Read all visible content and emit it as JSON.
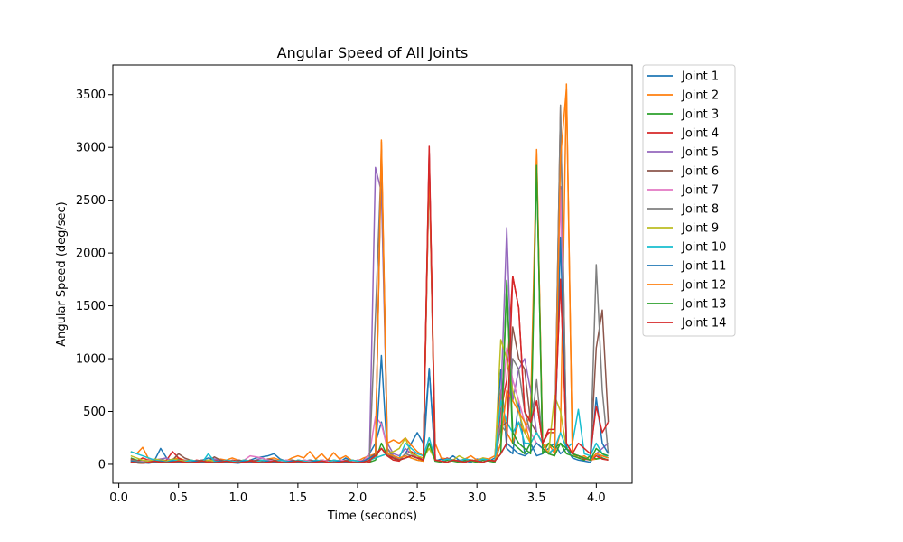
{
  "chart_data": {
    "type": "line",
    "title": "Angular Speed of All Joints",
    "xlabel": "Time (seconds)",
    "ylabel": "Angular Speed (deg/sec)",
    "xlim": [
      -0.05,
      4.3
    ],
    "ylim": [
      -180,
      3780
    ],
    "xticks": [
      0.0,
      0.5,
      1.0,
      1.5,
      2.0,
      2.5,
      3.0,
      3.5,
      4.0
    ],
    "xtick_labels": [
      "0.0",
      "0.5",
      "1.0",
      "1.5",
      "2.0",
      "2.5",
      "3.0",
      "3.5",
      "4.0"
    ],
    "yticks": [
      0,
      500,
      1000,
      1500,
      2000,
      2500,
      3000,
      3500
    ],
    "ytick_labels": [
      "0",
      "500",
      "1000",
      "1500",
      "2000",
      "2500",
      "3000",
      "3500"
    ],
    "grid": false,
    "legend_position": "outside-top-right",
    "x": [
      0.1,
      0.15,
      0.2,
      0.25,
      0.3,
      0.35,
      0.4,
      0.45,
      0.5,
      0.55,
      0.6,
      0.65,
      0.7,
      0.75,
      0.8,
      0.85,
      0.9,
      0.95,
      1.0,
      1.05,
      1.1,
      1.15,
      1.2,
      1.25,
      1.3,
      1.35,
      1.4,
      1.45,
      1.5,
      1.55,
      1.6,
      1.65,
      1.7,
      1.75,
      1.8,
      1.85,
      1.9,
      1.95,
      2.0,
      2.05,
      2.1,
      2.15,
      2.2,
      2.25,
      2.3,
      2.35,
      2.4,
      2.45,
      2.5,
      2.55,
      2.6,
      2.65,
      2.7,
      2.75,
      2.8,
      2.85,
      2.9,
      2.95,
      3.0,
      3.05,
      3.1,
      3.15,
      3.2,
      3.25,
      3.3,
      3.35,
      3.4,
      3.45,
      3.5,
      3.55,
      3.6,
      3.65,
      3.7,
      3.75,
      3.8,
      3.85,
      3.9,
      3.95,
      4.0,
      4.05,
      4.1
    ],
    "series": [
      {
        "name": "Joint 1",
        "color": "#1f77b4",
        "values": [
          30,
          15,
          10,
          20,
          40,
          150,
          60,
          30,
          50,
          20,
          15,
          30,
          40,
          60,
          50,
          30,
          20,
          15,
          10,
          20,
          40,
          60,
          70,
          80,
          100,
          50,
          30,
          20,
          20,
          30,
          40,
          30,
          20,
          40,
          30,
          20,
          60,
          30,
          20,
          40,
          100,
          200,
          400,
          150,
          60,
          40,
          100,
          200,
          300,
          200,
          900,
          30,
          50,
          40,
          80,
          40,
          30,
          20,
          50,
          40,
          30,
          60,
          900,
          150,
          100,
          600,
          100,
          200,
          80,
          100,
          150,
          200,
          100,
          150,
          60,
          40,
          30,
          20,
          100,
          60,
          40
        ]
      },
      {
        "name": "Joint 2",
        "color": "#ff7f0e",
        "values": [
          120,
          100,
          160,
          50,
          30,
          40,
          20,
          50,
          60,
          40,
          30,
          20,
          40,
          30,
          20,
          50,
          40,
          60,
          40,
          30,
          20,
          40,
          30,
          50,
          60,
          40,
          30,
          60,
          80,
          60,
          120,
          50,
          100,
          40,
          110,
          50,
          80,
          40,
          30,
          60,
          80,
          100,
          3070,
          200,
          230,
          200,
          250,
          180,
          120,
          80,
          2900,
          200,
          60,
          50,
          40,
          30,
          50,
          80,
          40,
          60,
          50,
          80,
          700,
          300,
          200,
          400,
          300,
          500,
          2980,
          150,
          200,
          100,
          300,
          3600,
          100,
          60,
          80,
          40,
          50,
          80,
          60
        ]
      },
      {
        "name": "Joint 3",
        "color": "#2ca02c",
        "values": [
          60,
          40,
          30,
          20,
          40,
          50,
          30,
          20,
          15,
          30,
          40,
          20,
          30,
          40,
          20,
          30,
          15,
          20,
          30,
          40,
          20,
          30,
          40,
          20,
          30,
          20,
          30,
          40,
          20,
          30,
          20,
          30,
          40,
          30,
          20,
          40,
          30,
          20,
          40,
          30,
          20,
          40,
          200,
          80,
          40,
          60,
          80,
          60,
          40,
          30,
          200,
          30,
          20,
          40,
          30,
          20,
          40,
          30,
          20,
          40,
          30,
          20,
          200,
          1740,
          200,
          150,
          100,
          200,
          2880,
          100,
          200,
          150,
          200,
          100,
          80,
          60,
          40,
          80,
          50,
          60,
          40
        ]
      },
      {
        "name": "Joint 4",
        "color": "#d62728",
        "values": [
          50,
          30,
          60,
          40,
          20,
          30,
          40,
          120,
          60,
          30,
          20,
          40,
          30,
          20,
          40,
          30,
          20,
          40,
          30,
          20,
          40,
          30,
          20,
          40,
          30,
          20,
          40,
          30,
          20,
          40,
          30,
          20,
          40,
          30,
          20,
          40,
          30,
          20,
          40,
          30,
          20,
          100,
          150,
          80,
          40,
          30,
          100,
          120,
          80,
          40,
          2950,
          40,
          30,
          60,
          40,
          30,
          50,
          40,
          30,
          50,
          40,
          30,
          500,
          800,
          1780,
          1480,
          500,
          400,
          600,
          200,
          300,
          300,
          1750,
          200,
          100,
          80,
          50,
          40,
          80,
          50,
          40
        ]
      },
      {
        "name": "Joint 5",
        "color": "#9467bd",
        "values": [
          40,
          30,
          20,
          30,
          40,
          50,
          60,
          30,
          20,
          40,
          30,
          20,
          40,
          30,
          50,
          40,
          30,
          20,
          40,
          30,
          20,
          40,
          60,
          40,
          30,
          20,
          40,
          30,
          20,
          40,
          30,
          20,
          40,
          30,
          20,
          40,
          30,
          20,
          40,
          30,
          100,
          2810,
          2580,
          200,
          100,
          80,
          150,
          100,
          60,
          40,
          2950,
          40,
          30,
          50,
          40,
          30,
          50,
          40,
          30,
          50,
          40,
          30,
          600,
          2240,
          600,
          900,
          1000,
          700,
          300,
          200,
          100,
          150,
          2630,
          150,
          100,
          80,
          60,
          40,
          100,
          150,
          200
        ]
      },
      {
        "name": "Joint 6",
        "color": "#8c564b",
        "values": [
          40,
          30,
          20,
          30,
          40,
          30,
          20,
          40,
          100,
          60,
          40,
          30,
          40,
          30,
          70,
          40,
          30,
          20,
          40,
          30,
          20,
          40,
          30,
          50,
          40,
          30,
          20,
          40,
          30,
          20,
          40,
          30,
          20,
          40,
          30,
          20,
          40,
          30,
          20,
          40,
          60,
          100,
          2980,
          100,
          60,
          40,
          60,
          80,
          60,
          40,
          2800,
          40,
          30,
          50,
          40,
          30,
          50,
          40,
          30,
          50,
          40,
          30,
          350,
          400,
          1300,
          1000,
          900,
          400,
          300,
          200,
          100,
          150,
          3380,
          150,
          100,
          80,
          60,
          40,
          1100,
          1460,
          400
        ]
      },
      {
        "name": "Joint 7",
        "color": "#e377c2",
        "values": [
          30,
          20,
          30,
          40,
          50,
          30,
          20,
          40,
          30,
          20,
          40,
          30,
          20,
          40,
          30,
          20,
          40,
          30,
          20,
          40,
          80,
          70,
          60,
          40,
          30,
          20,
          40,
          30,
          20,
          40,
          30,
          20,
          40,
          30,
          20,
          40,
          30,
          20,
          40,
          30,
          100,
          450,
          380,
          150,
          80,
          40,
          100,
          80,
          60,
          40,
          250,
          40,
          30,
          50,
          40,
          30,
          50,
          40,
          30,
          50,
          40,
          30,
          400,
          1100,
          800,
          600,
          400,
          300,
          200,
          150,
          100,
          150,
          2600,
          150,
          100,
          80,
          60,
          40,
          100,
          80,
          60
        ]
      },
      {
        "name": "Joint 8",
        "color": "#7f7f7f",
        "values": [
          40,
          30,
          20,
          30,
          40,
          30,
          20,
          40,
          30,
          20,
          40,
          30,
          20,
          40,
          30,
          20,
          40,
          30,
          20,
          40,
          30,
          20,
          40,
          30,
          20,
          40,
          30,
          20,
          40,
          30,
          20,
          40,
          30,
          20,
          40,
          30,
          20,
          40,
          30,
          20,
          40,
          1400,
          2900,
          150,
          80,
          40,
          100,
          80,
          60,
          40,
          2830,
          40,
          30,
          50,
          40,
          30,
          50,
          40,
          30,
          50,
          40,
          30,
          370,
          300,
          1000,
          900,
          500,
          300,
          800,
          200,
          100,
          150,
          3400,
          150,
          100,
          80,
          60,
          40,
          1890,
          700,
          100
        ]
      },
      {
        "name": "Joint 9",
        "color": "#bcbd22",
        "values": [
          80,
          60,
          40,
          30,
          50,
          40,
          30,
          50,
          40,
          30,
          40,
          30,
          20,
          40,
          30,
          20,
          40,
          30,
          20,
          40,
          30,
          20,
          40,
          30,
          20,
          40,
          30,
          20,
          40,
          30,
          20,
          40,
          30,
          20,
          40,
          30,
          20,
          40,
          30,
          20,
          40,
          60,
          80,
          100,
          120,
          150,
          250,
          100,
          80,
          60,
          150,
          40,
          30,
          50,
          40,
          80,
          50,
          40,
          30,
          60,
          40,
          30,
          1180,
          1000,
          700,
          500,
          300,
          200,
          300,
          200,
          100,
          650,
          500,
          150,
          100,
          80,
          60,
          40,
          100,
          80,
          60
        ]
      },
      {
        "name": "Joint 10",
        "color": "#17becf",
        "values": [
          120,
          100,
          80,
          60,
          40,
          30,
          20,
          40,
          30,
          20,
          40,
          30,
          20,
          100,
          30,
          20,
          40,
          30,
          20,
          40,
          30,
          20,
          40,
          30,
          20,
          40,
          30,
          20,
          40,
          30,
          20,
          40,
          30,
          20,
          40,
          30,
          20,
          40,
          30,
          20,
          40,
          60,
          80,
          100,
          80,
          60,
          200,
          150,
          100,
          80,
          250,
          40,
          30,
          50,
          40,
          30,
          50,
          40,
          30,
          50,
          40,
          30,
          600,
          400,
          300,
          400,
          200,
          200,
          300,
          200,
          100,
          150,
          300,
          150,
          200,
          520,
          100,
          80,
          200,
          100,
          60
        ]
      },
      {
        "name": "Joint 11",
        "color": "#1f77b4",
        "values": [
          30,
          20,
          15,
          10,
          20,
          30,
          20,
          30,
          20,
          15,
          20,
          30,
          20,
          15,
          20,
          30,
          20,
          15,
          20,
          30,
          20,
          15,
          20,
          30,
          20,
          15,
          20,
          30,
          20,
          15,
          20,
          30,
          20,
          15,
          20,
          30,
          20,
          15,
          20,
          30,
          60,
          80,
          1030,
          80,
          60,
          40,
          60,
          80,
          60,
          40,
          910,
          40,
          30,
          20,
          40,
          30,
          20,
          40,
          30,
          20,
          40,
          30,
          100,
          200,
          150,
          100,
          80,
          120,
          200,
          150,
          100,
          80,
          2150,
          150,
          100,
          80,
          60,
          40,
          630,
          200,
          100
        ]
      },
      {
        "name": "Joint 12",
        "color": "#ff7f0e",
        "values": [
          20,
          15,
          10,
          20,
          30,
          20,
          15,
          20,
          30,
          20,
          15,
          20,
          30,
          20,
          15,
          20,
          30,
          20,
          15,
          20,
          30,
          20,
          15,
          20,
          30,
          20,
          15,
          20,
          30,
          20,
          15,
          20,
          30,
          20,
          15,
          20,
          30,
          20,
          15,
          20,
          40,
          80,
          3050,
          100,
          80,
          60,
          80,
          60,
          40,
          30,
          2870,
          40,
          30,
          20,
          40,
          30,
          20,
          40,
          30,
          20,
          40,
          30,
          200,
          700,
          600,
          500,
          400,
          200,
          2950,
          200,
          100,
          80,
          2900,
          3560,
          100,
          80,
          60,
          40,
          100,
          80,
          60
        ]
      },
      {
        "name": "Joint 13",
        "color": "#2ca02c",
        "values": [
          20,
          15,
          10,
          20,
          30,
          20,
          15,
          20,
          30,
          20,
          15,
          20,
          30,
          20,
          15,
          20,
          30,
          20,
          15,
          20,
          30,
          20,
          15,
          20,
          30,
          20,
          15,
          20,
          30,
          20,
          15,
          20,
          30,
          20,
          15,
          20,
          30,
          20,
          15,
          20,
          40,
          80,
          150,
          80,
          60,
          40,
          60,
          80,
          60,
          40,
          200,
          40,
          30,
          20,
          40,
          30,
          20,
          40,
          30,
          20,
          40,
          30,
          100,
          1740,
          300,
          200,
          150,
          100,
          2830,
          150,
          100,
          80,
          200,
          150,
          100,
          80,
          60,
          40,
          150,
          100,
          80
        ]
      },
      {
        "name": "Joint 14",
        "color": "#d62728",
        "values": [
          20,
          15,
          10,
          20,
          30,
          20,
          15,
          20,
          30,
          20,
          15,
          20,
          30,
          20,
          15,
          20,
          30,
          20,
          15,
          20,
          30,
          20,
          15,
          20,
          30,
          20,
          15,
          20,
          30,
          20,
          15,
          20,
          30,
          20,
          15,
          20,
          30,
          20,
          15,
          20,
          40,
          80,
          150,
          80,
          60,
          40,
          60,
          80,
          60,
          40,
          3010,
          40,
          30,
          20,
          40,
          30,
          20,
          40,
          30,
          20,
          40,
          30,
          100,
          200,
          1780,
          1480,
          500,
          400,
          600,
          200,
          330,
          330,
          1750,
          200,
          100,
          200,
          150,
          100,
          550,
          300,
          400
        ]
      }
    ]
  }
}
